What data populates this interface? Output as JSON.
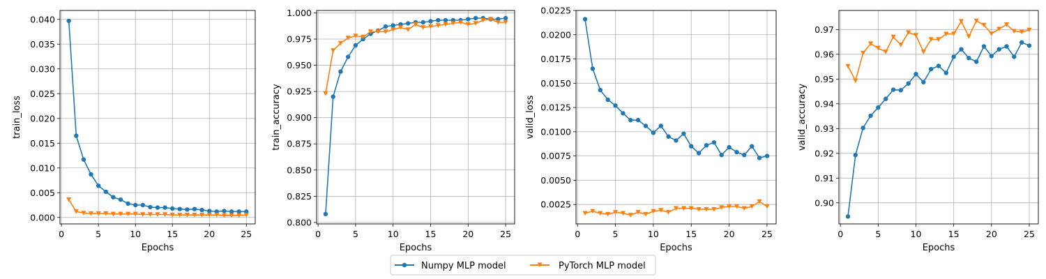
{
  "legend": {
    "placement": "bottom-center",
    "entries": [
      {
        "label": "Numpy MLP model",
        "color": "#1f77b4",
        "marker": "circle"
      },
      {
        "label": "PyTorch MLP model",
        "color": "#ff7f0e",
        "marker": "triangle-down"
      }
    ]
  },
  "chart_data": [
    {
      "type": "line",
      "xlabel": "Epochs",
      "ylabel": "train_loss",
      "grid": true,
      "xlim": [
        -0.2,
        26.2
      ],
      "ylim": [
        -0.0013,
        0.0418
      ],
      "xticks": [
        "0",
        "5",
        "10",
        "15",
        "20",
        "25"
      ],
      "yticks": [
        "0.000",
        "0.005",
        "0.010",
        "0.015",
        "0.020",
        "0.025",
        "0.030",
        "0.035",
        "0.040"
      ],
      "x": [
        1,
        2,
        3,
        4,
        5,
        6,
        7,
        8,
        9,
        10,
        11,
        12,
        13,
        14,
        15,
        16,
        17,
        18,
        19,
        20,
        21,
        22,
        23,
        24,
        25
      ],
      "series": [
        {
          "name": "Numpy MLP model",
          "values": [
            0.0397,
            0.0165,
            0.0117,
            0.0087,
            0.0064,
            0.0052,
            0.0041,
            0.0036,
            0.0028,
            0.0025,
            0.0025,
            0.0021,
            0.002,
            0.002,
            0.0018,
            0.0017,
            0.0016,
            0.0017,
            0.0015,
            0.0013,
            0.0012,
            0.0013,
            0.0012,
            0.0012,
            0.0012
          ]
        },
        {
          "name": "PyTorch MLP model",
          "values": [
            0.0036,
            0.0012,
            0.0009,
            0.0008,
            0.0008,
            0.0008,
            0.0007,
            0.0007,
            0.0007,
            0.0007,
            0.0006,
            0.0006,
            0.0006,
            0.0006,
            0.0005,
            0.0005,
            0.0005,
            0.0005,
            0.0005,
            0.0005,
            0.0005,
            0.0004,
            0.0004,
            0.0004,
            0.0005
          ]
        }
      ]
    },
    {
      "type": "line",
      "xlabel": "Epochs",
      "ylabel": "train_accuracy",
      "grid": true,
      "xlim": [
        -0.2,
        26.2
      ],
      "ylim": [
        0.7986,
        1.0023
      ],
      "xticks": [
        "0",
        "5",
        "10",
        "15",
        "20",
        "25"
      ],
      "yticks": [
        "0.800",
        "0.825",
        "0.850",
        "0.875",
        "0.900",
        "0.925",
        "0.950",
        "0.975",
        "1.000"
      ],
      "x": [
        1,
        2,
        3,
        4,
        5,
        6,
        7,
        8,
        9,
        10,
        11,
        12,
        13,
        14,
        15,
        16,
        17,
        18,
        19,
        20,
        21,
        22,
        23,
        24,
        25
      ],
      "series": [
        {
          "name": "Numpy MLP model",
          "values": [
            0.808,
            0.92,
            0.944,
            0.958,
            0.969,
            0.975,
            0.98,
            0.983,
            0.987,
            0.988,
            0.989,
            0.99,
            0.991,
            0.991,
            0.992,
            0.993,
            0.993,
            0.993,
            0.993,
            0.994,
            0.995,
            0.995,
            0.994,
            0.994,
            0.995
          ]
        },
        {
          "name": "PyTorch MLP model",
          "values": [
            0.923,
            0.964,
            0.971,
            0.976,
            0.978,
            0.977,
            0.982,
            0.982,
            0.982,
            0.984,
            0.986,
            0.984,
            0.989,
            0.986,
            0.987,
            0.988,
            0.989,
            0.99,
            0.991,
            0.989,
            0.99,
            0.993,
            0.994,
            0.991,
            0.991
          ]
        }
      ]
    },
    {
      "type": "line",
      "xlabel": "Epochs",
      "ylabel": "valid_loss",
      "grid": true,
      "xlim": [
        -0.2,
        26.2
      ],
      "ylim": [
        0.0005,
        0.0225
      ],
      "xticks": [
        "0",
        "5",
        "10",
        "15",
        "20",
        "25"
      ],
      "yticks": [
        "0.0025",
        "0.0050",
        "0.0075",
        "0.0100",
        "0.0125",
        "0.0150",
        "0.0175",
        "0.0200",
        "0.0225"
      ],
      "x": [
        1,
        2,
        3,
        4,
        5,
        6,
        7,
        8,
        9,
        10,
        11,
        12,
        13,
        14,
        15,
        16,
        17,
        18,
        19,
        20,
        21,
        22,
        23,
        24,
        25
      ],
      "series": [
        {
          "name": "Numpy MLP model",
          "values": [
            0.0216,
            0.0165,
            0.0143,
            0.0133,
            0.0127,
            0.0119,
            0.0112,
            0.0112,
            0.0106,
            0.0099,
            0.0106,
            0.0095,
            0.0091,
            0.0098,
            0.0085,
            0.0078,
            0.0086,
            0.0089,
            0.0076,
            0.0084,
            0.0079,
            0.0076,
            0.0085,
            0.0073,
            0.0075
          ]
        },
        {
          "name": "PyTorch MLP model",
          "values": [
            0.0016,
            0.0018,
            0.0016,
            0.0015,
            0.0017,
            0.0016,
            0.0014,
            0.0017,
            0.0015,
            0.0018,
            0.0019,
            0.0017,
            0.0021,
            0.0021,
            0.0021,
            0.002,
            0.002,
            0.002,
            0.0022,
            0.0023,
            0.0023,
            0.0021,
            0.0023,
            0.0028,
            0.0023
          ]
        }
      ]
    },
    {
      "type": "line",
      "xlabel": "Epochs",
      "ylabel": "valid_accuracy",
      "grid": true,
      "xlim": [
        -0.2,
        26.2
      ],
      "ylim": [
        0.8915,
        0.9777
      ],
      "xticks": [
        "0",
        "5",
        "10",
        "15",
        "20",
        "25"
      ],
      "yticks": [
        "0.90",
        "0.91",
        "0.92",
        "0.93",
        "0.94",
        "0.95",
        "0.96",
        "0.97"
      ],
      "x": [
        1,
        2,
        3,
        4,
        5,
        6,
        7,
        8,
        9,
        10,
        11,
        12,
        13,
        14,
        15,
        16,
        17,
        18,
        19,
        20,
        21,
        22,
        23,
        24,
        25
      ],
      "series": [
        {
          "name": "Numpy MLP model",
          "values": [
            0.8945,
            0.9193,
            0.9303,
            0.9352,
            0.9385,
            0.942,
            0.9457,
            0.9455,
            0.9482,
            0.952,
            0.9487,
            0.954,
            0.9553,
            0.9525,
            0.959,
            0.962,
            0.9585,
            0.957,
            0.9632,
            0.9593,
            0.962,
            0.9632,
            0.959,
            0.9648,
            0.9635
          ]
        },
        {
          "name": "PyTorch MLP model",
          "values": [
            0.9552,
            0.9493,
            0.9605,
            0.9643,
            0.9625,
            0.961,
            0.967,
            0.9638,
            0.9688,
            0.9677,
            0.961,
            0.966,
            0.966,
            0.9682,
            0.9683,
            0.9733,
            0.9672,
            0.9735,
            0.9718,
            0.9683,
            0.9702,
            0.972,
            0.9693,
            0.969,
            0.9698
          ]
        }
      ]
    }
  ]
}
